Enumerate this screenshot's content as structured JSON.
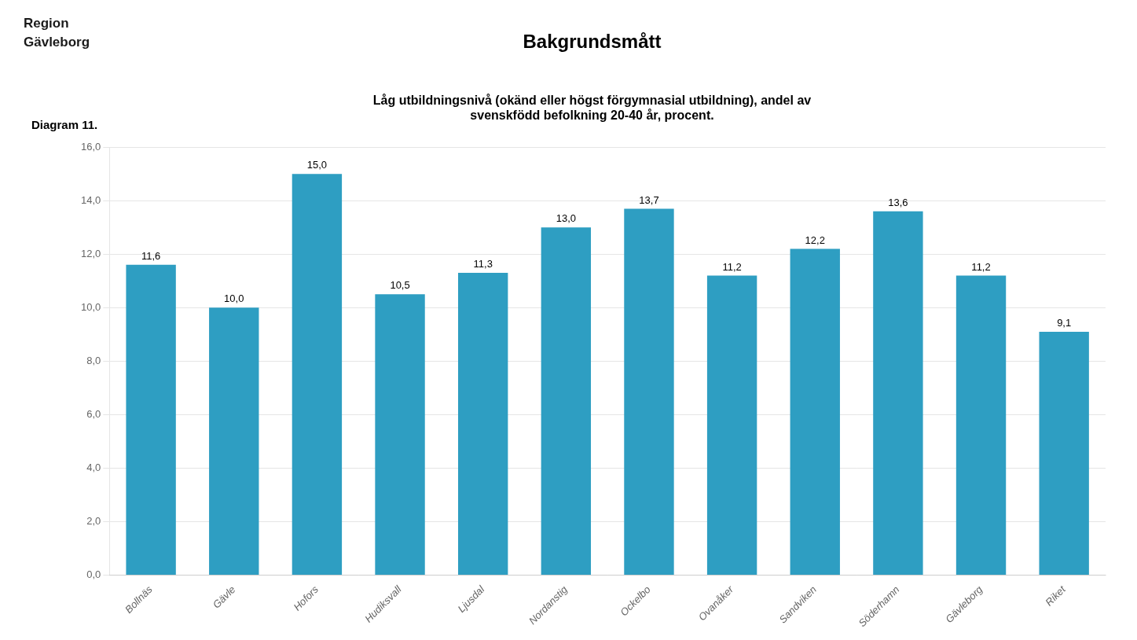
{
  "chart_data": {
    "type": "bar",
    "title": "Bakgrundsmått",
    "subtitle": "Låg utbildningsnivå (okänd eller högst förgymnasial utbildning), andel av\nsvenskfödd befolkning 20-40 år, procent.",
    "annotations": [
      "Region\nGävleborg",
      "Diagram 11."
    ],
    "categories": [
      "Bollnäs",
      "Gävle",
      "Hofors",
      "Hudiksvall",
      "Ljusdal",
      "Nordanstig",
      "Ockelbo",
      "Ovanåker",
      "Sandviken",
      "Söderhamn",
      "Gävleborg",
      "Riket"
    ],
    "values": [
      11.6,
      10.0,
      15.0,
      10.5,
      11.3,
      13.0,
      13.7,
      11.2,
      12.2,
      13.6,
      11.2,
      9.1
    ],
    "value_labels": [
      "11,6",
      "10,0",
      "15,0",
      "10,5",
      "11,3",
      "13,0",
      "13,7",
      "11,2",
      "12,2",
      "13,6",
      "11,2",
      "9,1"
    ],
    "data_labels": true,
    "color": "#2E9EC2",
    "ylim": [
      0,
      16.0
    ],
    "yticks": [
      {
        "value": 0.0,
        "label": "0,0"
      },
      {
        "value": 2.0,
        "label": "2,0"
      },
      {
        "value": 4.0,
        "label": "4,0"
      },
      {
        "value": 6.0,
        "label": "6,0"
      },
      {
        "value": 8.0,
        "label": "8,0"
      },
      {
        "value": 10.0,
        "label": "10,0"
      },
      {
        "value": 12.0,
        "label": "12,0"
      },
      {
        "value": 14.0,
        "label": "14,0"
      },
      {
        "value": 16.0,
        "label": "16,0"
      }
    ],
    "grid": "y"
  }
}
